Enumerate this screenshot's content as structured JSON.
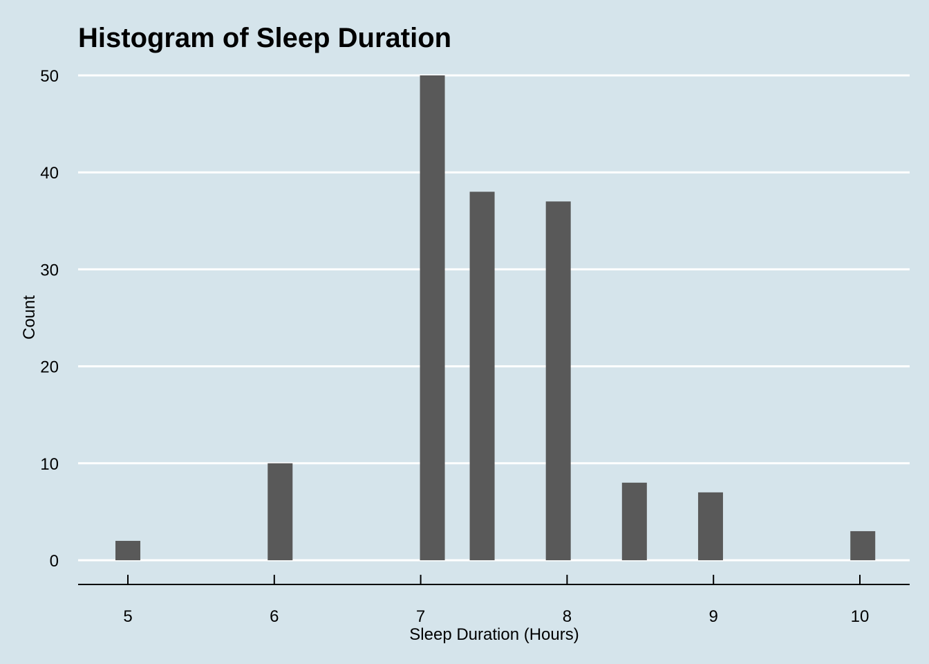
{
  "colors": {
    "background": "#d5e4eb",
    "bar_fill": "#595959",
    "gridline": "#ffffff",
    "axis": "#000000"
  },
  "chart_data": {
    "type": "bar",
    "title": "Histogram of Sleep Duration",
    "xlabel": "Sleep Duration (Hours)",
    "ylabel": "Count",
    "xlim": [
      4.66,
      10.34
    ],
    "ylim": [
      0,
      50
    ],
    "x_ticks": [
      5,
      6,
      7,
      8,
      9,
      10
    ],
    "y_ticks": [
      0,
      10,
      20,
      30,
      40,
      50
    ],
    "grid": "horizontal major",
    "bin_width": 0.17,
    "bins": [
      {
        "x": 5.0,
        "count": 2
      },
      {
        "x": 6.04,
        "count": 10
      },
      {
        "x": 7.08,
        "count": 50
      },
      {
        "x": 7.42,
        "count": 38
      },
      {
        "x": 7.94,
        "count": 37
      },
      {
        "x": 8.46,
        "count": 8
      },
      {
        "x": 8.98,
        "count": 7
      },
      {
        "x": 10.02,
        "count": 3
      }
    ]
  }
}
